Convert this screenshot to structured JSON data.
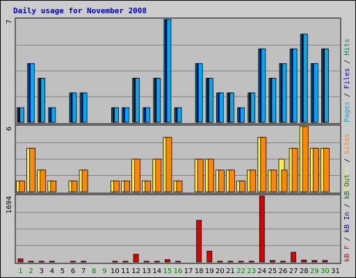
{
  "chart_data": {
    "type": "bar",
    "title": "Daily usage for November 2008",
    "categories": [
      "1",
      "2",
      "3",
      "4",
      "5",
      "6",
      "7",
      "8",
      "9",
      "10",
      "11",
      "12",
      "13",
      "14",
      "15",
      "16",
      "17",
      "18",
      "19",
      "20",
      "21",
      "22",
      "23",
      "24",
      "25",
      "26",
      "27",
      "28",
      "29",
      "30",
      "31"
    ],
    "weekend_days": [
      "1",
      "2",
      "8",
      "9",
      "15",
      "16",
      "22",
      "23",
      "29",
      "30"
    ],
    "colors": {
      "frame": "#cccccc",
      "plot_bg": "#c0c0c0",
      "title": "#0000cc",
      "day_weekday": "#000000",
      "day_weekend": "#008000",
      "gridline": "#808080",
      "hits": "#00805c",
      "files": "#0000cc",
      "pages": "#00aaee",
      "visits": "#ffee44",
      "sites": "#ff8800",
      "kb_out": "#008000",
      "kb_in": "#0000cc",
      "kb_f": "#dd0000"
    },
    "panels": [
      {
        "ymax_label": "7",
        "ymax": 7,
        "side_label": [
          {
            "text": "Pages",
            "color": "#00aaee"
          },
          {
            "text": " / ",
            "color": "#000000"
          },
          {
            "text": "Files",
            "color": "#0000cc"
          },
          {
            "text": " / ",
            "color": "#000000"
          },
          {
            "text": "Hits",
            "color": "#00805c"
          }
        ],
        "series": [
          {
            "name": "Hits",
            "color": "#00805c",
            "values": [
              1,
              4,
              3,
              1,
              0,
              2,
              2,
              0,
              0,
              1,
              1,
              3,
              1,
              3,
              7,
              1,
              0,
              4,
              3,
              2,
              2,
              1,
              2,
              5,
              3,
              4,
              5,
              6,
              4,
              5,
              0
            ]
          },
          {
            "name": "Files",
            "color": "#0000cc",
            "values": [
              1,
              4,
              3,
              1,
              0,
              2,
              2,
              0,
              0,
              1,
              1,
              3,
              1,
              3,
              7,
              1,
              0,
              4,
              3,
              2,
              2,
              1,
              2,
              5,
              3,
              4,
              5,
              6,
              4,
              5,
              0
            ]
          },
          {
            "name": "Pages",
            "color": "#00aaee",
            "values": [
              1,
              4,
              3,
              1,
              0,
              2,
              2,
              0,
              0,
              1,
              1,
              3,
              1,
              3,
              7,
              1,
              0,
              4,
              3,
              2,
              2,
              1,
              2,
              5,
              3,
              4,
              5,
              6,
              4,
              5,
              0
            ]
          }
        ]
      },
      {
        "ymax_label": "6",
        "ymax": 6,
        "side_label": [
          {
            "text": "Visits",
            "color": "#ffee44"
          },
          {
            "text": " / ",
            "color": "#000000"
          },
          {
            "text": "Sites",
            "color": "#ff8800"
          }
        ],
        "series": [
          {
            "name": "Visits",
            "color": "#ffee44",
            "values": [
              1,
              4,
              2,
              1,
              0,
              1,
              2,
              0,
              0,
              1,
              1,
              3,
              1,
              3,
              5,
              1,
              0,
              3,
              3,
              2,
              2,
              1,
              2,
              5,
              2,
              3,
              4,
              6,
              4,
              4,
              0
            ]
          },
          {
            "name": "Sites",
            "color": "#ff8800",
            "values": [
              1,
              4,
              2,
              1,
              0,
              1,
              2,
              0,
              0,
              1,
              1,
              3,
              1,
              3,
              5,
              1,
              0,
              3,
              3,
              2,
              2,
              1,
              2,
              5,
              2,
              2,
              4,
              6,
              4,
              4,
              0
            ]
          }
        ]
      },
      {
        "ymax_label": "1694",
        "ymax": 1694,
        "side_label": [
          {
            "text": "kB F",
            "color": "#dd0000"
          },
          {
            "text": " / ",
            "color": "#000000"
          },
          {
            "text": "kB In",
            "color": "#0000cc"
          },
          {
            "text": " / ",
            "color": "#000000"
          },
          {
            "text": "kB Out",
            "color": "#008000"
          }
        ],
        "series": [
          {
            "name": "kB F",
            "color": "#dd0000",
            "values": [
              80,
              20,
              20,
              20,
              0,
              20,
              20,
              0,
              0,
              20,
              20,
              200,
              20,
              20,
              60,
              20,
              0,
              1070,
              280,
              20,
              20,
              20,
              20,
              1694,
              40,
              20,
              250,
              50,
              40,
              40,
              0
            ]
          }
        ]
      }
    ]
  }
}
